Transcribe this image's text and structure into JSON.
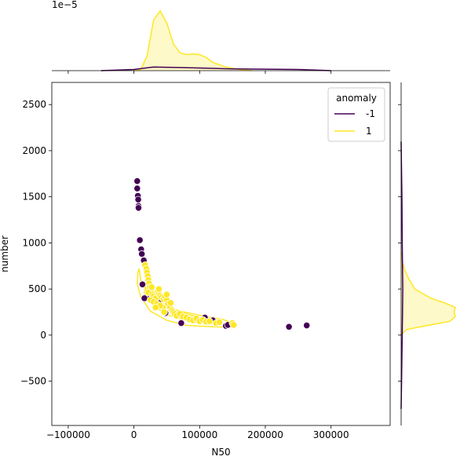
{
  "chart_data": {
    "type": "scatter",
    "title": "",
    "xlabel": "N50",
    "ylabel": "number",
    "xlim": [
      -125000,
      390000
    ],
    "ylim": [
      -980,
      2740
    ],
    "xticks": [
      -100000,
      0,
      100000,
      200000,
      300000
    ],
    "xtick_labels": [
      "−100000",
      "0",
      "100000",
      "200000",
      "300000"
    ],
    "yticks": [
      -500,
      0,
      500,
      1000,
      1500,
      2000,
      2500
    ],
    "ytick_labels": [
      "−500",
      "0",
      "500",
      "1000",
      "1500",
      "2000",
      "2500"
    ],
    "top_marginal_offset_label": "1e−5",
    "grid": false,
    "legend": {
      "title": "anomaly",
      "placement": "top-right",
      "entries": [
        {
          "label": "-1",
          "color": "#440154"
        },
        {
          "label": "1",
          "color": "#fde725"
        }
      ]
    },
    "series": [
      {
        "name": "-1",
        "color": "#440154",
        "points": [
          [
            5000,
            1670
          ],
          [
            5000,
            1590
          ],
          [
            6000,
            1510
          ],
          [
            6500,
            1470
          ],
          [
            7000,
            1400
          ],
          [
            7000,
            1380
          ],
          [
            9000,
            1030
          ],
          [
            11000,
            930
          ],
          [
            12000,
            880
          ],
          [
            15000,
            810
          ],
          [
            13000,
            550
          ],
          [
            20000,
            420
          ],
          [
            16000,
            400
          ],
          [
            40000,
            380
          ],
          [
            48000,
            240
          ],
          [
            72000,
            130
          ],
          [
            108000,
            190
          ],
          [
            120000,
            160
          ],
          [
            140000,
            100
          ],
          [
            143000,
            110
          ],
          [
            236000,
            90
          ],
          [
            263000,
            105
          ]
        ]
      },
      {
        "name": "1",
        "color": "#fde725",
        "points": [
          [
            17000,
            760
          ],
          [
            19000,
            720
          ],
          [
            20000,
            680
          ],
          [
            21000,
            640
          ],
          [
            22000,
            600
          ],
          [
            23000,
            560
          ],
          [
            24000,
            520
          ],
          [
            26000,
            480
          ],
          [
            22000,
            460
          ],
          [
            28000,
            440
          ],
          [
            30000,
            420
          ],
          [
            33000,
            400
          ],
          [
            25000,
            380
          ],
          [
            36000,
            470
          ],
          [
            38000,
            450
          ],
          [
            40000,
            430
          ],
          [
            42000,
            410
          ],
          [
            45000,
            390
          ],
          [
            30000,
            360
          ],
          [
            35000,
            340
          ],
          [
            47000,
            420
          ],
          [
            50000,
            380
          ],
          [
            52000,
            340
          ],
          [
            55000,
            300
          ],
          [
            58000,
            270
          ],
          [
            44000,
            300
          ],
          [
            40000,
            320
          ],
          [
            60000,
            250
          ],
          [
            62000,
            230
          ],
          [
            65000,
            210
          ],
          [
            70000,
            230
          ],
          [
            75000,
            200
          ],
          [
            80000,
            190
          ],
          [
            85000,
            170
          ],
          [
            90000,
            160
          ],
          [
            95000,
            180
          ],
          [
            100000,
            150
          ],
          [
            105000,
            165
          ],
          [
            110000,
            145
          ],
          [
            115000,
            150
          ],
          [
            125000,
            130
          ],
          [
            130000,
            140
          ],
          [
            150000,
            130
          ],
          [
            152000,
            110
          ],
          [
            38000,
            500
          ],
          [
            50000,
            440
          ],
          [
            27000,
            520
          ],
          [
            33000,
            300
          ],
          [
            46000,
            250
          ],
          [
            56000,
            350
          ]
        ]
      }
    ],
    "top_marginal": {
      "type": "kde",
      "series": [
        {
          "name": "-1",
          "x": [
            -50000,
            0,
            30000,
            80000,
            150000,
            250000,
            300000
          ],
          "density": [
            0,
            0.02,
            0.06,
            0.05,
            0.03,
            0.02,
            0
          ]
        },
        {
          "name": "1",
          "x": [
            0,
            10000,
            20000,
            30000,
            40000,
            50000,
            60000,
            70000,
            80000,
            90000,
            100000,
            110000,
            120000,
            140000,
            160000,
            180000
          ],
          "density": [
            0,
            0.01,
            0.25,
            0.85,
            1.0,
            0.8,
            0.45,
            0.3,
            0.27,
            0.28,
            0.27,
            0.22,
            0.14,
            0.06,
            0.02,
            0
          ]
        }
      ]
    },
    "right_marginal": {
      "type": "kde",
      "series": [
        {
          "name": "-1",
          "y": [
            -800,
            -400,
            0,
            500,
            1000,
            1500,
            1900,
            2100
          ],
          "density": [
            0,
            0.01,
            0.02,
            0.03,
            0.02,
            0.015,
            0.005,
            0
          ]
        },
        {
          "name": "1",
          "y": [
            0,
            60,
            100,
            150,
            200,
            250,
            300,
            350,
            400,
            500,
            600,
            700,
            800,
            900
          ],
          "density": [
            0,
            0.1,
            0.45,
            0.9,
            1.0,
            0.98,
            1.0,
            0.8,
            0.55,
            0.25,
            0.15,
            0.07,
            0.02,
            0
          ]
        }
      ]
    },
    "kde_contours": [
      {
        "name": "1-outer",
        "color": "#fde725",
        "points": [
          [
            8000,
            720
          ],
          [
            10000,
            600
          ],
          [
            20000,
            470
          ],
          [
            40000,
            340
          ],
          [
            70000,
            260
          ],
          [
            110000,
            200
          ],
          [
            135000,
            170
          ],
          [
            155000,
            120
          ],
          [
            148000,
            85
          ],
          [
            120000,
            90
          ],
          [
            80000,
            105
          ],
          [
            50000,
            160
          ],
          [
            25000,
            260
          ],
          [
            10000,
            420
          ],
          [
            5000,
            560
          ],
          [
            6000,
            680
          ],
          [
            8000,
            720
          ]
        ]
      },
      {
        "name": "1-inner",
        "color": "#fde725",
        "points": [
          [
            18000,
            520
          ],
          [
            25000,
            430
          ],
          [
            45000,
            340
          ],
          [
            70000,
            250
          ],
          [
            100000,
            190
          ],
          [
            125000,
            150
          ],
          [
            115000,
            120
          ],
          [
            85000,
            145
          ],
          [
            55000,
            210
          ],
          [
            35000,
            290
          ],
          [
            20000,
            380
          ],
          [
            16000,
            460
          ],
          [
            18000,
            520
          ]
        ]
      }
    ]
  }
}
